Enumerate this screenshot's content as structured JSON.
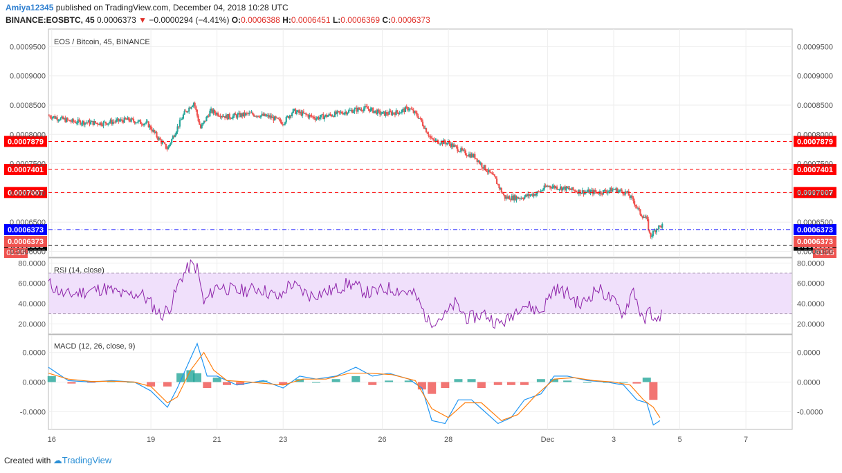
{
  "header": {
    "username": "Amiya12345",
    "published_text": "published on TradingView.com, December 04, 2018 10:28 UTC",
    "symbol": "BINANCE:EOSBTC, 45",
    "last_price": "0.0006373",
    "change_arrow": "▼",
    "change": "−0.0000294 (−4.41%)",
    "open_label": "O:",
    "open": "0.0006388",
    "high_label": "H:",
    "high": "0.0006451",
    "low_label": "L:",
    "low": "0.0006369",
    "close_label": "C:",
    "close": "0.0006373"
  },
  "footer": {
    "created_with": "Created with",
    "brand": "TradingView"
  },
  "colors": {
    "up": "#26a69a",
    "down": "#ef5350",
    "resistance": "#ff0000",
    "price_line": "#0000ff",
    "support": "#000000",
    "rsi_line": "#8e24aa",
    "rsi_band": "#f0e0fb",
    "macd_line": "#2196f3",
    "signal_line": "#ff7f0e"
  },
  "chart_data": [
    {
      "type": "candlestick",
      "title": "EOS / Bitcoin, 45, BINANCE",
      "ylim": [
        0.00059,
        0.00098
      ],
      "y_ticks": [
        "0.0009500",
        "0.0009000",
        "0.0008500",
        "0.0008000",
        "0.0007500",
        "0.0007000",
        "0.0006500",
        "0.0006000"
      ],
      "y_tick_values": [
        0.00095,
        0.0009,
        0.00085,
        0.0008,
        0.00075,
        0.0007,
        0.00065,
        0.0006
      ],
      "x_ticks": [
        "16",
        "19",
        "21",
        "23",
        "26",
        "28",
        "Dec",
        "3",
        "5",
        "7"
      ],
      "x_tick_days": [
        16,
        19,
        21,
        23,
        26,
        28,
        31,
        33,
        35,
        37
      ],
      "x_range_days": [
        15.9,
        38.4
      ],
      "close_path": [
        [
          15.9,
          0.000832
        ],
        [
          16.6,
          0.000822
        ],
        [
          17.5,
          0.000819
        ],
        [
          18.3,
          0.000825
        ],
        [
          18.9,
          0.000818
        ],
        [
          19.2,
          0.000795
        ],
        [
          19.5,
          0.000775
        ],
        [
          19.7,
          0.0008
        ],
        [
          20.0,
          0.000835
        ],
        [
          20.3,
          0.000855
        ],
        [
          20.5,
          0.00081
        ],
        [
          20.8,
          0.00084
        ],
        [
          21.3,
          0.00083
        ],
        [
          22.0,
          0.000835
        ],
        [
          22.6,
          0.00083
        ],
        [
          23.0,
          0.00082
        ],
        [
          23.3,
          0.00084
        ],
        [
          24.0,
          0.000828
        ],
        [
          24.6,
          0.000835
        ],
        [
          25.0,
          0.00084
        ],
        [
          25.5,
          0.000845
        ],
        [
          26.0,
          0.000835
        ],
        [
          26.5,
          0.000838
        ],
        [
          26.8,
          0.000845
        ],
        [
          27.1,
          0.00083
        ],
        [
          27.5,
          0.00079
        ],
        [
          28.0,
          0.000785
        ],
        [
          28.5,
          0.000768
        ],
        [
          28.8,
          0.000762
        ],
        [
          29.0,
          0.000748
        ],
        [
          29.4,
          0.000725
        ],
        [
          29.7,
          0.000692
        ],
        [
          30.2,
          0.000692
        ],
        [
          30.7,
          0.0007
        ],
        [
          31.0,
          0.000712
        ],
        [
          31.5,
          0.000708
        ],
        [
          32.0,
          0.000702
        ],
        [
          32.6,
          0.000701
        ],
        [
          33.0,
          0.000706
        ],
        [
          33.4,
          0.0007
        ],
        [
          33.6,
          0.000686
        ],
        [
          33.8,
          0.000665
        ],
        [
          34.0,
          0.000655
        ],
        [
          34.1,
          0.000625
        ],
        [
          34.3,
          0.00064
        ],
        [
          34.5,
          0.000645
        ]
      ],
      "horizontal_lines": [
        {
          "name": "resistance-1",
          "value": 0.0007879,
          "label": "0.0007879",
          "style": "dashed",
          "color": "#ff0000"
        },
        {
          "name": "resistance-2",
          "value": 0.0007401,
          "label": "0.0007401",
          "style": "dashed",
          "color": "#ff0000"
        },
        {
          "name": "resistance-3",
          "value": 0.0007007,
          "label": "0.0007007",
          "style": "dashed",
          "color": "#ff0000"
        },
        {
          "name": "last-price",
          "value": 0.0006373,
          "label": "0.0006373",
          "style": "dash-dot",
          "color": "#0000ff"
        },
        {
          "name": "support",
          "value": 0.0006106,
          "label": "0.0006106",
          "style": "dashed",
          "color": "#000000"
        }
      ],
      "price_badges": [
        {
          "name": "price-close-badge",
          "text": "0.0006373",
          "value": 0.0006373,
          "color": "#ef5350",
          "countdown": "01:15"
        }
      ]
    },
    {
      "type": "line",
      "title": "RSI (14, close)",
      "ylim": [
        10,
        85
      ],
      "y_ticks": [
        "80.0000",
        "60.0000",
        "40.0000",
        "20.0000"
      ],
      "y_tick_values": [
        80,
        60,
        40,
        20
      ],
      "band": [
        30,
        70
      ],
      "rsi": [
        [
          15.9,
          60
        ],
        [
          16.4,
          48
        ],
        [
          17.0,
          52
        ],
        [
          17.6,
          55
        ],
        [
          18.2,
          48
        ],
        [
          18.7,
          50
        ],
        [
          19.0,
          40
        ],
        [
          19.3,
          28
        ],
        [
          19.6,
          38
        ],
        [
          19.9,
          65
        ],
        [
          20.2,
          78
        ],
        [
          20.4,
          75
        ],
        [
          20.6,
          40
        ],
        [
          21.0,
          58
        ],
        [
          21.6,
          52
        ],
        [
          22.3,
          55
        ],
        [
          22.9,
          45
        ],
        [
          23.2,
          60
        ],
        [
          23.8,
          48
        ],
        [
          24.5,
          53
        ],
        [
          25.0,
          60
        ],
        [
          25.6,
          50
        ],
        [
          26.2,
          55
        ],
        [
          26.7,
          52
        ],
        [
          27.0,
          48
        ],
        [
          27.4,
          22
        ],
        [
          27.9,
          28
        ],
        [
          28.2,
          40
        ],
        [
          28.6,
          25
        ],
        [
          29.1,
          30
        ],
        [
          29.5,
          20
        ],
        [
          29.8,
          24
        ],
        [
          30.2,
          40
        ],
        [
          30.8,
          32
        ],
        [
          31.2,
          55
        ],
        [
          31.6,
          50
        ],
        [
          32.0,
          38
        ],
        [
          32.5,
          55
        ],
        [
          32.9,
          45
        ],
        [
          33.3,
          30
        ],
        [
          33.6,
          55
        ],
        [
          33.9,
          20
        ],
        [
          34.1,
          35
        ],
        [
          34.3,
          18
        ],
        [
          34.5,
          38
        ]
      ]
    },
    {
      "type": "line",
      "title": "MACD (12, 26, close, 9)",
      "ylim": [
        -1.6,
        1.6
      ],
      "y_ticks": [
        "0.0000",
        "0.0000",
        "-0.0000"
      ],
      "y_tick_values": [
        1,
        0,
        -1
      ],
      "macd": [
        [
          15.9,
          0.5
        ],
        [
          16.5,
          0.05
        ],
        [
          17.2,
          0.0
        ],
        [
          17.8,
          0.05
        ],
        [
          18.5,
          0.0
        ],
        [
          19.0,
          -0.3
        ],
        [
          19.5,
          -0.85
        ],
        [
          19.8,
          -0.2
        ],
        [
          20.2,
          0.8
        ],
        [
          20.4,
          1.3
        ],
        [
          20.7,
          0.2
        ],
        [
          21.0,
          0.2
        ],
        [
          21.6,
          -0.1
        ],
        [
          22.4,
          0.05
        ],
        [
          23.0,
          -0.2
        ],
        [
          23.5,
          0.2
        ],
        [
          24.0,
          0.1
        ],
        [
          24.6,
          0.2
        ],
        [
          25.2,
          0.5
        ],
        [
          25.7,
          0.2
        ],
        [
          26.2,
          0.3
        ],
        [
          26.8,
          0.1
        ],
        [
          27.2,
          -0.2
        ],
        [
          27.5,
          -1.3
        ],
        [
          27.9,
          -1.4
        ],
        [
          28.3,
          -0.6
        ],
        [
          28.7,
          -0.6
        ],
        [
          29.0,
          -0.9
        ],
        [
          29.5,
          -1.4
        ],
        [
          29.9,
          -1.2
        ],
        [
          30.3,
          -0.6
        ],
        [
          30.8,
          -0.4
        ],
        [
          31.2,
          0.2
        ],
        [
          31.6,
          0.2
        ],
        [
          32.2,
          0.05
        ],
        [
          32.8,
          0.0
        ],
        [
          33.3,
          -0.1
        ],
        [
          33.7,
          -0.6
        ],
        [
          34.0,
          -0.7
        ],
        [
          34.2,
          -1.45
        ],
        [
          34.4,
          -1.3
        ]
      ],
      "signal": [
        [
          15.9,
          0.3
        ],
        [
          16.5,
          0.1
        ],
        [
          17.2,
          0.02
        ],
        [
          17.8,
          0.03
        ],
        [
          18.5,
          0.0
        ],
        [
          19.0,
          -0.15
        ],
        [
          19.5,
          -0.7
        ],
        [
          19.8,
          -0.5
        ],
        [
          20.2,
          0.4
        ],
        [
          20.6,
          1.0
        ],
        [
          20.9,
          0.4
        ],
        [
          21.3,
          0.05
        ],
        [
          22.0,
          0.0
        ],
        [
          23.0,
          -0.1
        ],
        [
          23.6,
          0.1
        ],
        [
          24.3,
          0.1
        ],
        [
          25.0,
          0.3
        ],
        [
          25.6,
          0.3
        ],
        [
          26.3,
          0.25
        ],
        [
          27.0,
          0.05
        ],
        [
          27.5,
          -0.9
        ],
        [
          28.0,
          -1.2
        ],
        [
          28.5,
          -0.7
        ],
        [
          29.0,
          -0.7
        ],
        [
          29.6,
          -1.3
        ],
        [
          30.1,
          -1.1
        ],
        [
          30.6,
          -0.5
        ],
        [
          31.2,
          0.1
        ],
        [
          31.8,
          0.15
        ],
        [
          32.4,
          0.05
        ],
        [
          33.0,
          0.0
        ],
        [
          33.5,
          -0.1
        ],
        [
          33.9,
          -0.6
        ],
        [
          34.2,
          -0.85
        ],
        [
          34.4,
          -1.2
        ]
      ],
      "histogram_days": [
        16.0,
        16.6,
        17.2,
        17.8,
        18.4,
        19.0,
        19.5,
        19.9,
        20.2,
        20.4,
        20.7,
        21.0,
        21.3,
        21.7,
        22.4,
        23.0,
        23.5,
        24.0,
        24.6,
        25.2,
        25.7,
        26.2,
        26.8,
        27.2,
        27.5,
        27.9,
        28.3,
        28.7,
        29.0,
        29.5,
        29.9,
        30.3,
        30.8,
        31.2,
        31.6,
        32.2,
        32.8,
        33.3,
        33.7,
        34.0,
        34.2
      ],
      "histogram": [
        0.2,
        -0.05,
        -0.02,
        0.02,
        0.0,
        -0.15,
        -0.15,
        0.3,
        0.4,
        0.3,
        -0.2,
        0.15,
        -0.1,
        -0.1,
        0.05,
        -0.1,
        0.1,
        0.0,
        0.1,
        0.2,
        -0.1,
        0.05,
        0.05,
        -0.25,
        -0.4,
        -0.2,
        0.1,
        0.1,
        -0.2,
        -0.1,
        -0.1,
        -0.1,
        0.1,
        0.1,
        0.05,
        0.0,
        0.0,
        0.0,
        -0.05,
        0.15,
        -0.6
      ]
    }
  ]
}
